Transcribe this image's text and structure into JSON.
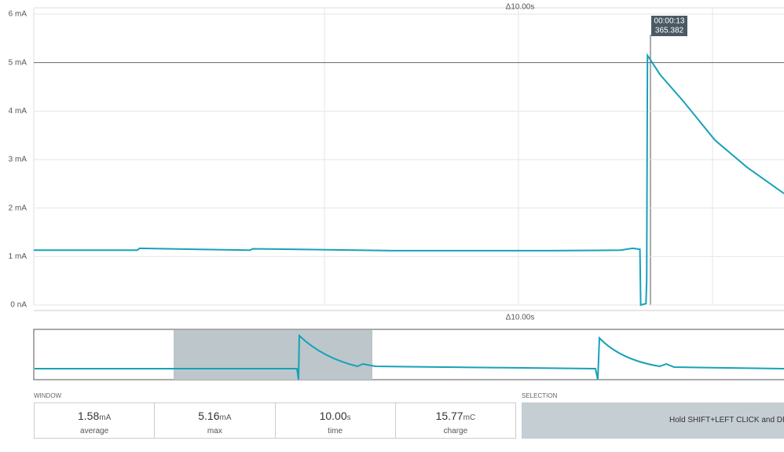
{
  "chart_data": {
    "type": "line",
    "window_label": "Δ10.00s",
    "minimap_label": "Δ10.00s",
    "cursor": {
      "time": "00:00:13",
      "value": "365.382"
    },
    "x": [
      0,
      1.38,
      1.41,
      2.88,
      2.92,
      4.79,
      6.88,
      7.82,
      7.98,
      8.08,
      8.09,
      8.16,
      8.17,
      8.18,
      8.35,
      8.66,
      9.08,
      9.5,
      10
    ],
    "series": [
      {
        "color": "#17a2b8",
        "values": [
          1.13,
          1.13,
          1.17,
          1.13,
          1.16,
          1.12,
          1.12,
          1.13,
          1.17,
          1.15,
          0.0,
          0.03,
          0.5,
          5.15,
          4.75,
          4.2,
          3.4,
          2.85,
          2.3
        ]
      }
    ],
    "xlim": [
      0,
      10
    ],
    "ylim": [
      0,
      6.13
    ],
    "yticks": [
      {
        "value": 0,
        "label": "0 nA"
      },
      {
        "value": 1,
        "label": "1 mA"
      },
      {
        "value": 2,
        "label": "2 mA"
      },
      {
        "value": 3,
        "label": "3 mA"
      },
      {
        "value": 4,
        "label": "4 mA"
      },
      {
        "value": 5,
        "label": "5 mA"
      },
      {
        "value": 6,
        "label": "6 mA"
      }
    ],
    "grid": true
  },
  "window": {
    "title": "WINDOW",
    "stats": [
      {
        "value": "1.58",
        "unit": "mA",
        "label": "average"
      },
      {
        "value": "5.16",
        "unit": "mA",
        "label": "max"
      },
      {
        "value": "10.00",
        "unit": "s",
        "label": "time"
      },
      {
        "value": "15.77",
        "unit": "mC",
        "label": "charge"
      }
    ]
  },
  "selection": {
    "title": "SELECTION",
    "hint": "Hold SHIFT+LEFT CLICK and DRA"
  }
}
